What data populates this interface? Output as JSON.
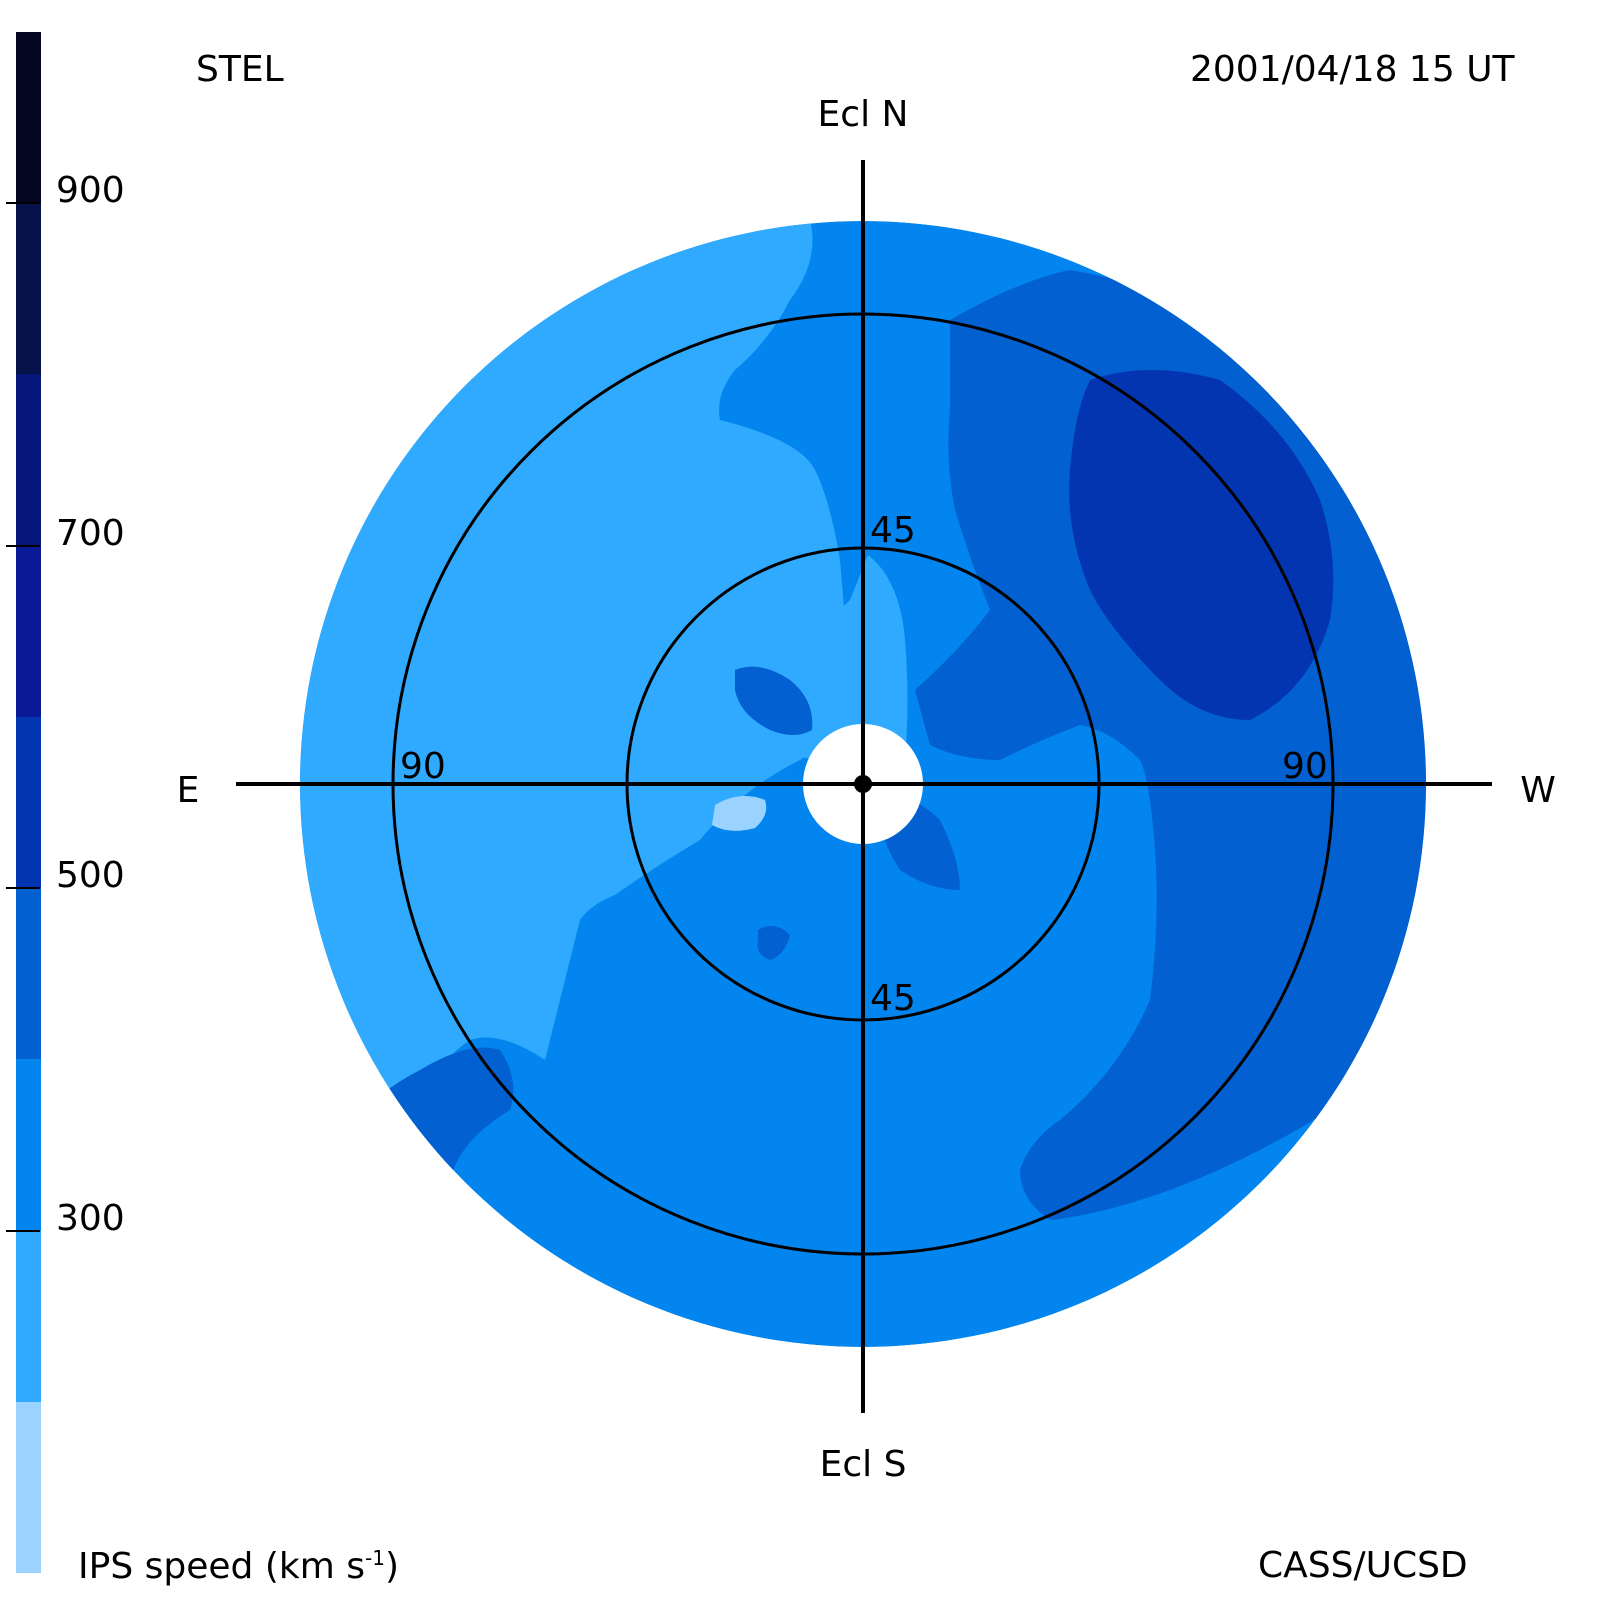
{
  "header": {
    "station": "STEL",
    "timestamp": "2001/04/18 15 UT",
    "credit": "CASS/UCSD"
  },
  "colorbar": {
    "title_prefix": "IPS speed (km s",
    "title_exp": "-1",
    "title_suffix": ")",
    "segments": [
      {
        "from": 1000,
        "to": 900,
        "color": "#030722"
      },
      {
        "from": 900,
        "to": 800,
        "color": "#05134a"
      },
      {
        "from": 800,
        "to": 700,
        "color": "#07167a"
      },
      {
        "from": 700,
        "to": 600,
        "color": "#0a1a96"
      },
      {
        "from": 600,
        "to": 500,
        "color": "#0435b0"
      },
      {
        "from": 500,
        "to": 400,
        "color": "#0260d0"
      },
      {
        "from": 400,
        "to": 300,
        "color": "#0285ee"
      },
      {
        "from": 300,
        "to": 200,
        "color": "#2faaff"
      },
      {
        "from": 200,
        "to": 100,
        "color": "#9ad3ff"
      }
    ],
    "ticks": [
      "900",
      "700",
      "500",
      "300"
    ]
  },
  "map": {
    "directions": {
      "north": "Ecl N",
      "south": "Ecl S",
      "east": "E",
      "west": "W"
    },
    "ring_labels": {
      "inner_top": "45",
      "inner_bottom": "45",
      "outer_left": "90",
      "outer_right": "90"
    },
    "colors": {
      "base": "#0285ee",
      "slow": "#2faaff",
      "very_slow": "#9ad3ff",
      "medium": "#0260d0",
      "fast": "#0435b0",
      "center": "#ffffff"
    }
  }
}
